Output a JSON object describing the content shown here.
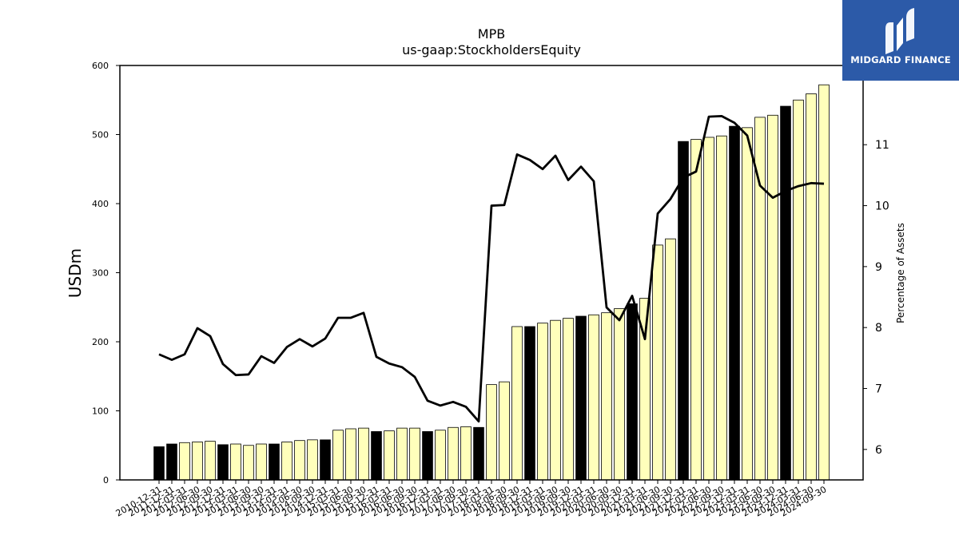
{
  "chart_data": {
    "type": "bar",
    "title": "MPB",
    "subtitle": "us-gaap:StockholdersEquity",
    "ylabel": "USDm",
    "y2label": "Percentage of Assets",
    "ylim": [
      0,
      600
    ],
    "y2lim": [
      5.5,
      12.3
    ],
    "yticks": [
      0,
      100,
      200,
      300,
      400,
      500,
      600
    ],
    "y2ticks": [
      6,
      7,
      8,
      9,
      10,
      11
    ],
    "grid": false,
    "categories": [
      "2010-12-31",
      "2011-12-31",
      "2012-03-31",
      "2012-06-30",
      "2012-09-30",
      "2012-12-31",
      "2013-03-31",
      "2013-06-30",
      "2013-09-30",
      "2013-12-31",
      "2014-03-31",
      "2014-06-30",
      "2014-09-30",
      "2014-12-31",
      "2015-03-31",
      "2015-06-30",
      "2015-09-30",
      "2015-12-31",
      "2016-03-31",
      "2016-06-30",
      "2016-09-30",
      "2016-12-31",
      "2017-03-31",
      "2017-06-30",
      "2017-09-30",
      "2017-12-31",
      "2018-03-31",
      "2018-06-30",
      "2018-09-30",
      "2018-12-31",
      "2019-03-31",
      "2019-06-30",
      "2019-09-30",
      "2019-12-31",
      "2020-03-31",
      "2020-06-30",
      "2020-09-30",
      "2020-12-31",
      "2021-03-31",
      "2021-06-30",
      "2021-09-30",
      "2021-12-31",
      "2022-03-31",
      "2022-06-30",
      "2022-09-30",
      "2022-12-31",
      "2023-03-31",
      "2023-06-30",
      "2023-09-30",
      "2023-12-31",
      "2024-03-31",
      "2024-06-30",
      "2024-09-30"
    ],
    "series": [
      {
        "kind": "bar",
        "axis": "left",
        "values": [
          48,
          52,
          54,
          55,
          56,
          51,
          52,
          50,
          52,
          52,
          55,
          57,
          58,
          58,
          72,
          74,
          75,
          70,
          71,
          75,
          75,
          70,
          72,
          76,
          77,
          76,
          138,
          142,
          222,
          222,
          227,
          231,
          234,
          237,
          239,
          242,
          248,
          255,
          263,
          340,
          349,
          490,
          493,
          496,
          498,
          512,
          510,
          525,
          528,
          541,
          550,
          559,
          572
        ],
        "year_end_color": "#000000",
        "quarter_color": "#ffffbb"
      },
      {
        "kind": "line",
        "axis": "right",
        "color": "#000000",
        "values": [
          7.56,
          7.47,
          7.56,
          7.99,
          7.86,
          7.4,
          7.22,
          7.23,
          7.53,
          7.42,
          7.68,
          7.81,
          7.69,
          7.82,
          8.16,
          8.16,
          8.24,
          7.52,
          7.41,
          7.35,
          7.19,
          6.8,
          6.72,
          6.78,
          6.7,
          6.46,
          10.0,
          10.01,
          10.84,
          10.75,
          10.6,
          10.82,
          10.42,
          10.64,
          10.4,
          8.33,
          8.12,
          8.52,
          7.81,
          9.87,
          10.11,
          10.46,
          10.56,
          11.46,
          11.47,
          11.36,
          11.15,
          10.33,
          10.13,
          10.24,
          10.32,
          10.37,
          10.36
        ]
      }
    ]
  },
  "logo": {
    "name": "MIDGARD FINANCE",
    "color": "#2c5aa8"
  }
}
